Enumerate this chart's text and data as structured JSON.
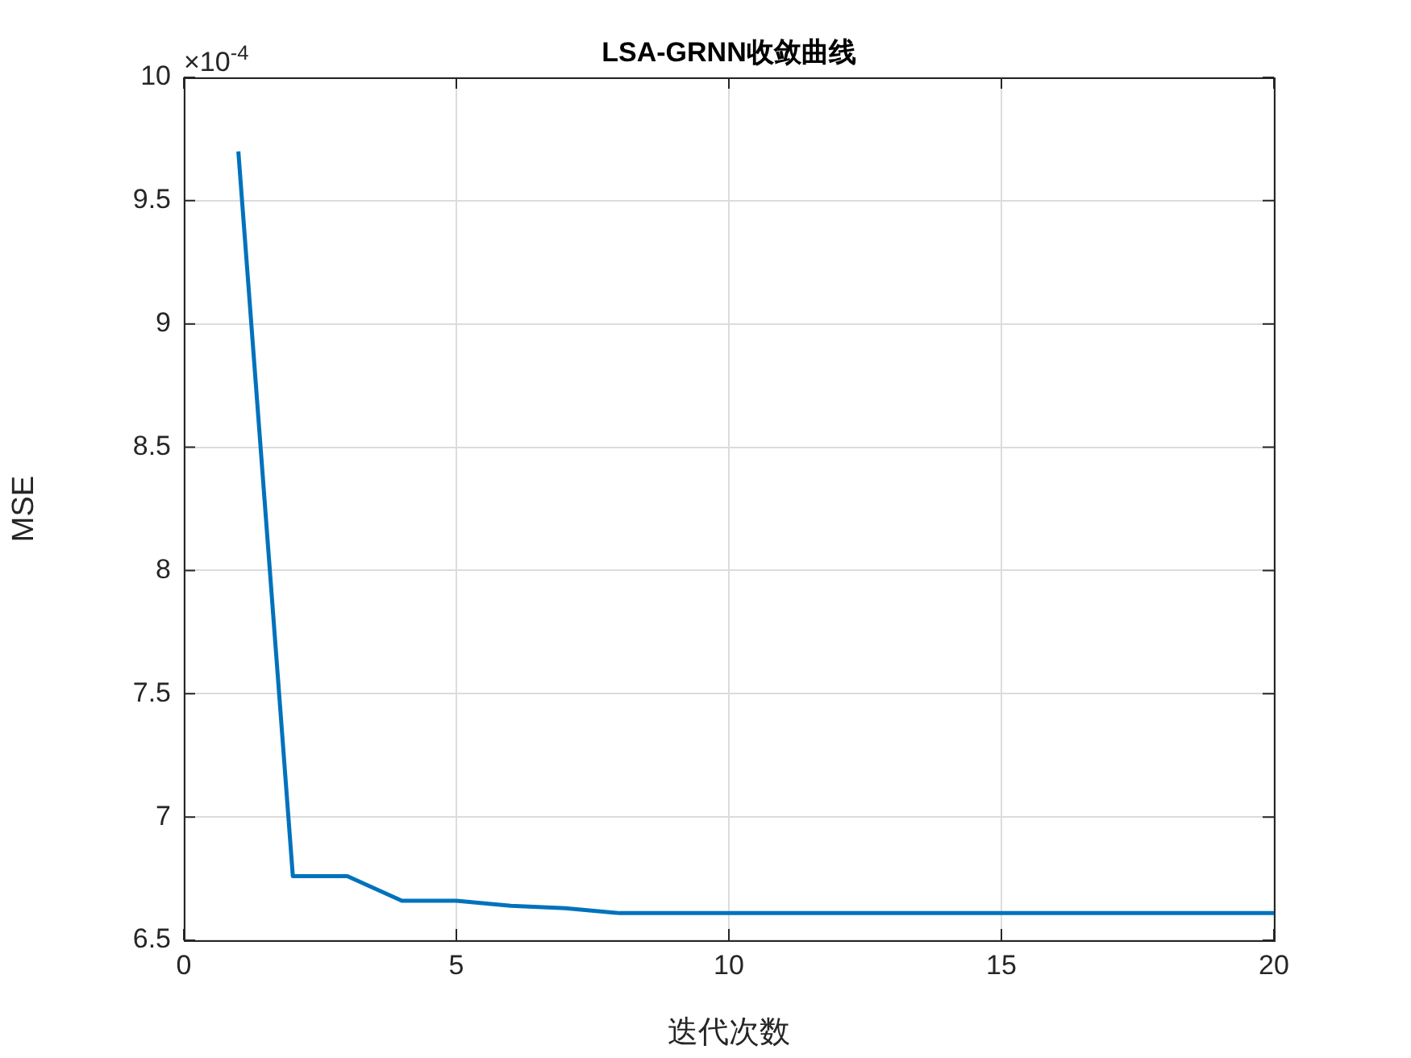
{
  "chart_data": {
    "type": "line",
    "title": "LSA-GRNN收敛曲线",
    "xlabel": "迭代次数",
    "ylabel": "MSE",
    "annotations": [
      "×10$^{-4}$"
    ],
    "x": [
      1,
      2,
      3,
      4,
      5,
      6,
      7,
      8,
      9,
      10,
      11,
      12,
      13,
      14,
      15,
      16,
      17,
      18,
      19,
      20
    ],
    "series": [
      {
        "color": "#0072bd",
        "values": [
          9.7,
          6.76,
          6.76,
          6.66,
          6.66,
          6.64,
          6.63,
          6.61,
          6.61,
          6.61,
          6.61,
          6.61,
          6.61,
          6.61,
          6.61,
          6.61,
          6.61,
          6.61,
          6.61,
          6.61
        ]
      }
    ],
    "xlim": [
      0,
      20
    ],
    "xticks": [
      0,
      5,
      10,
      15,
      20
    ],
    "ylim": [
      6.5,
      10
    ],
    "yticks": [
      6.5,
      7,
      7.5,
      8,
      8.5,
      9,
      9.5,
      10
    ],
    "grid": true,
    "legend": false,
    "marker": "none",
    "line_style": "solid"
  }
}
